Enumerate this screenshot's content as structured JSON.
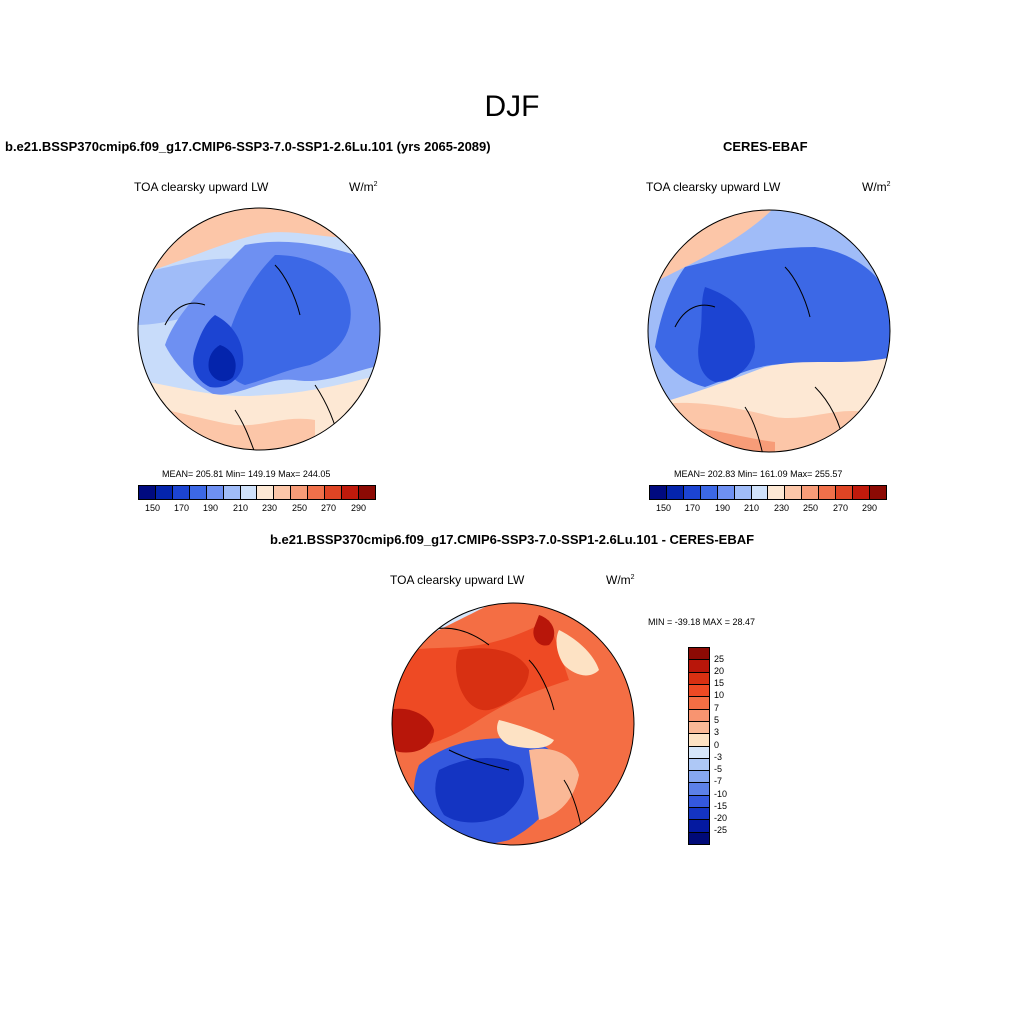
{
  "season": "DJF",
  "panels": [
    {
      "title": "b.e21.BSSP370cmip6.f09_g17.CMIP6-SSP3-7.0-SSP1-2.6Lu.101 (yrs 2065-2089)",
      "variable": "TOA clearsky upward LW",
      "units_base": "W/m",
      "units_exp": "2",
      "stats": "MEAN= 205.81  Min= 149.19  Max= 244.05"
    },
    {
      "title": "CERES-EBAF",
      "variable": "TOA clearsky upward LW",
      "units_base": "W/m",
      "units_exp": "2",
      "stats": "MEAN= 202.83  Min= 161.09  Max= 255.57"
    },
    {
      "title": "b.e21.BSSP370cmip6.f09_g17.CMIP6-SSP3-7.0-SSP1-2.6Lu.101 - CERES-EBAF",
      "variable": "TOA clearsky upward LW",
      "units_base": "W/m",
      "units_exp": "2",
      "stats": "MIN = -39.18 MAX =  28.47"
    }
  ],
  "abs_colorbar": {
    "colors": [
      "#000a80",
      "#0424ac",
      "#1c44d2",
      "#3c68e6",
      "#6e90f2",
      "#a0bcf8",
      "#d0e2fb",
      "#fde8d4",
      "#fcc6a8",
      "#f79c78",
      "#f0704a",
      "#de4424",
      "#c01a0c",
      "#8c0a04"
    ],
    "labels": [
      "150",
      "170",
      "190",
      "210",
      "230",
      "250",
      "270",
      "290"
    ]
  },
  "diff_colorbar": {
    "colors": [
      "#8c0a04",
      "#b8160a",
      "#d83012",
      "#ee4a24",
      "#f46e44",
      "#f89470",
      "#fab896",
      "#fde2c4",
      "#d6e6fa",
      "#aec8f6",
      "#86a6f0",
      "#5c80e8",
      "#3458de",
      "#1434c2",
      "#0419a0",
      "#000a78"
    ],
    "labels": [
      "25",
      "20",
      "15",
      "10",
      "7",
      "5",
      "3",
      "0",
      "-3",
      "-5",
      "-7",
      "-10",
      "-15",
      "-20",
      "-25"
    ]
  }
}
